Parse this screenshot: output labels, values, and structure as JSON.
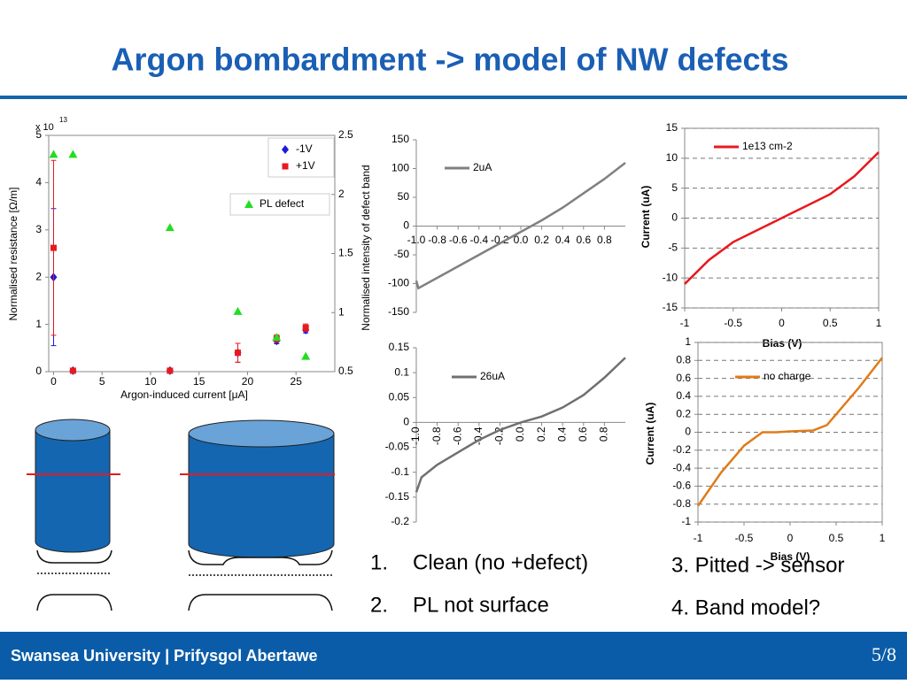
{
  "title": "Argon bombardment -> model of NW defects",
  "chart_data": [
    {
      "type": "scatter",
      "xlabel": "Argon-induced current [μA]",
      "ylabel": "Normalised resistance [Ω/m]",
      "y2label": "Normalised intensity of defect band",
      "y_multiplier": "x 10",
      "y_multiplier_exponent": "13",
      "xlim": [
        -0.5,
        29
      ],
      "xticks": [
        0,
        5,
        10,
        15,
        20,
        25
      ],
      "ylim": [
        0,
        5
      ],
      "yticks": [
        0,
        1,
        2,
        3,
        4,
        5
      ],
      "y2lim": [
        0.5,
        2.5
      ],
      "y2ticks": [
        0.5,
        1,
        1.5,
        2,
        2.5
      ],
      "grid": false,
      "series": [
        {
          "name": "-1V",
          "color": "#1a1adc",
          "marker": "diamond",
          "x": [
            0,
            2,
            12,
            19,
            23,
            26
          ],
          "values": [
            2.0,
            0.02,
            0.02,
            0.4,
            0.65,
            0.88
          ],
          "errors": [
            1.45,
            0.03,
            0.03,
            0.2,
            0.06,
            0.06
          ]
        },
        {
          "name": "+1V",
          "color": "#e8191e",
          "marker": "square",
          "x": [
            0,
            2,
            12,
            19,
            23,
            26
          ],
          "values": [
            2.62,
            0.02,
            0.02,
            0.4,
            0.7,
            0.93
          ],
          "errors": [
            1.85,
            0.03,
            0.03,
            0.2,
            0.08,
            0.08
          ]
        },
        {
          "name": "PL defect",
          "color": "#22dd22",
          "marker": "triangle",
          "axis": "y2",
          "x": [
            0,
            2,
            12,
            19,
            23,
            26
          ],
          "values": [
            2.34,
            2.34,
            1.72,
            1.01,
            0.79,
            0.63
          ]
        }
      ]
    },
    {
      "type": "line",
      "xlim": [
        -1,
        1
      ],
      "xticks": [
        {
          "value": -1,
          "label": "-1.0"
        },
        -0.8,
        -0.6,
        -0.4,
        -0.2,
        {
          "value": 0,
          "label": "0.0"
        },
        0.2,
        0.4,
        0.6,
        0.8
      ],
      "ylim": [
        -150,
        150
      ],
      "yticks": [
        -150,
        -100,
        -50,
        0,
        50,
        100,
        150
      ],
      "grid": false,
      "x": [
        -1,
        -0.98,
        -0.8,
        -0.6,
        -0.4,
        -0.2,
        0,
        0.2,
        0.4,
        0.6,
        0.8,
        1
      ],
      "series": [
        {
          "name": "2uA",
          "color": "#808080",
          "values": [
            -95,
            -108,
            -90,
            -70,
            -50,
            -30,
            -10,
            10,
            32,
            57,
            82,
            110
          ]
        }
      ]
    },
    {
      "type": "line",
      "xlim": [
        -1,
        1
      ],
      "xticks": [
        {
          "value": -1,
          "label": "-1.0"
        },
        -0.8,
        -0.6,
        -0.4,
        -0.2,
        {
          "value": 0,
          "label": "0.0"
        },
        0.2,
        0.4,
        0.6,
        0.8
      ],
      "ylim": [
        -0.2,
        0.15
      ],
      "yticks": [
        -0.2,
        -0.15,
        -0.1,
        -0.05,
        0,
        0.05,
        0.1,
        0.15
      ],
      "grid": false,
      "x": [
        -1,
        -0.95,
        -0.8,
        -0.6,
        -0.4,
        -0.2,
        0,
        0.2,
        0.4,
        0.6,
        0.8,
        1
      ],
      "series": [
        {
          "name": "26uA",
          "color": "#707070",
          "values": [
            -0.14,
            -0.11,
            -0.085,
            -0.06,
            -0.035,
            -0.015,
            0,
            0.012,
            0.03,
            0.055,
            0.09,
            0.13
          ]
        }
      ]
    },
    {
      "type": "line",
      "xlabel": "Bias (V)",
      "ylabel": "Current (uA)",
      "xlim": [
        -1,
        1
      ],
      "xticks": [
        -1,
        -0.5,
        0,
        0.5,
        1
      ],
      "ylim": [
        -15,
        15
      ],
      "yticks": [
        -15,
        -10,
        -5,
        0,
        5,
        10,
        15
      ],
      "grid": true,
      "x": [
        -1,
        -0.75,
        -0.5,
        -0.25,
        0,
        0.25,
        0.5,
        0.75,
        1
      ],
      "series": [
        {
          "name": "1e13 cm-2",
          "color": "#e8191e",
          "values": [
            -11,
            -7,
            -4,
            -2,
            0,
            2,
            4,
            7,
            11
          ]
        }
      ]
    },
    {
      "type": "line",
      "xlabel": "Bias (V)",
      "ylabel": "Current (uA)",
      "xlim": [
        -1,
        1
      ],
      "xticks": [
        -1,
        -0.5,
        0,
        0.5,
        1
      ],
      "ylim": [
        -1,
        1
      ],
      "yticks": [
        -1,
        -0.8,
        -0.6,
        -0.4,
        -0.2,
        0,
        0.2,
        0.4,
        0.6,
        0.8,
        1
      ],
      "grid": true,
      "x": [
        -1,
        -0.75,
        -0.5,
        -0.3,
        -0.15,
        0,
        0.25,
        0.4,
        0.5,
        0.75,
        1
      ],
      "series": [
        {
          "name": "no charge",
          "color": "#e07b1a",
          "values": [
            -0.82,
            -0.45,
            -0.15,
            0,
            0,
            0.01,
            0.02,
            0.08,
            0.2,
            0.5,
            0.83
          ]
        }
      ]
    }
  ],
  "list_left": [
    {
      "number": "1.",
      "text": "Clean (no +defect)"
    },
    {
      "number": "2.",
      "text": "PL not surface"
    }
  ],
  "list_right": [
    "3. Pitted -> sensor",
    "4. Band model?"
  ],
  "footer": {
    "institution": "Swansea University | Prifysgol Abertawe",
    "page": "5/8"
  }
}
